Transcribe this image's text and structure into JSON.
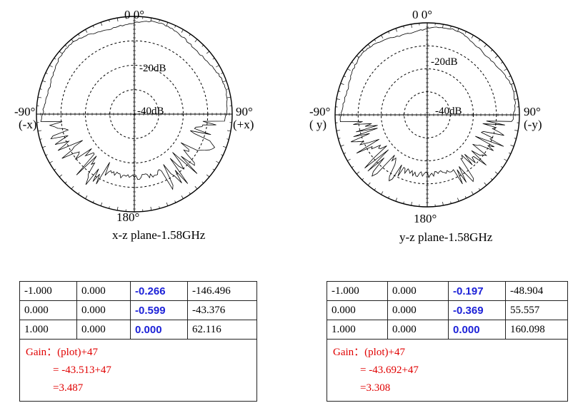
{
  "chart_data": [
    {
      "type": "polar",
      "title": "x-z plane-1.58GHz",
      "angle_labels": {
        "top": "0 0°",
        "bottom": "180°",
        "left": [
          "-90°",
          "(-x)"
        ],
        "right": [
          "90°",
          "(+x)"
        ]
      },
      "ring_labels": [
        "-20dB",
        "-40dB"
      ],
      "rings_dashed": 3,
      "radial_unit": "dB"
    },
    {
      "type": "polar",
      "title": "y-z plane-1.58GHz",
      "angle_labels": {
        "top": "0 0°",
        "bottom": "180°",
        "left": [
          "-90°",
          "( y)"
        ],
        "right": [
          "90°",
          "(-y)"
        ]
      },
      "ring_labels": [
        "-20dB",
        "-40dB"
      ],
      "rings_dashed": 3,
      "radial_unit": "dB"
    }
  ],
  "tables": [
    {
      "rows": [
        [
          "-1.000",
          "0.000",
          "-0.266",
          "-146.496"
        ],
        [
          "0.000",
          "0.000",
          "-0.599",
          "-43.376"
        ],
        [
          "1.000",
          "0.000",
          "0.000",
          "62.116"
        ]
      ],
      "gain": [
        "Gain：(plot)+47",
        "= -43.513+47",
        "=3.487"
      ]
    },
    {
      "rows": [
        [
          "-1.000",
          "0.000",
          "-0.197",
          "-48.904"
        ],
        [
          "0.000",
          "0.000",
          "-0.369",
          "55.557"
        ],
        [
          "1.000",
          "0.000",
          "0.000",
          "160.098"
        ]
      ],
      "gain": [
        "Gain：(plot)+47",
        "= -43.692+47",
        "=3.308"
      ]
    }
  ],
  "colors": {
    "highlight": "#1d22d8",
    "gain": "#e00000"
  }
}
